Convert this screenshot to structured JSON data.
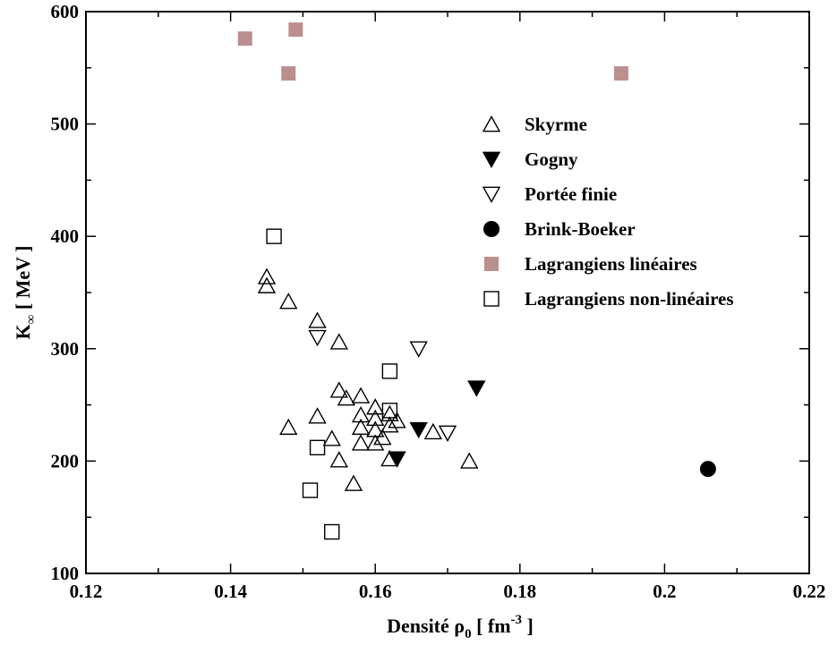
{
  "chart_data": {
    "type": "scatter",
    "title": "",
    "xlabel": {
      "main": "Densité ρ",
      "sub": "0",
      "open": " [ fm",
      "sup": "-3",
      "close": " ]"
    },
    "ylabel": {
      "main": "K",
      "sub": "∞",
      "rest": " [ MeV ]"
    },
    "xlim": [
      0.12,
      0.22
    ],
    "ylim": [
      100,
      600
    ],
    "xticks": [
      0.12,
      0.14,
      0.16,
      0.18,
      0.2,
      0.22
    ],
    "xtick_labels": [
      "0.12",
      "0.14",
      "0.16",
      "0.18",
      "0.2",
      "0.22"
    ],
    "yticks": [
      100,
      200,
      300,
      400,
      500,
      600
    ],
    "ytick_labels": [
      "100",
      "200",
      "300",
      "400",
      "500",
      "600"
    ],
    "grid": false,
    "legend_position": "right",
    "series": [
      {
        "name": "Skyrme",
        "marker": "triangle-up-open",
        "color": "#000000",
        "points": [
          [
            0.145,
            364
          ],
          [
            0.145,
            356
          ],
          [
            0.148,
            342
          ],
          [
            0.152,
            325
          ],
          [
            0.155,
            306
          ],
          [
            0.155,
            263
          ],
          [
            0.156,
            256
          ],
          [
            0.158,
            258
          ],
          [
            0.16,
            248
          ],
          [
            0.162,
            242
          ],
          [
            0.158,
            241
          ],
          [
            0.16,
            238
          ],
          [
            0.163,
            236
          ],
          [
            0.162,
            232
          ],
          [
            0.158,
            230
          ],
          [
            0.16,
            228
          ],
          [
            0.161,
            221
          ],
          [
            0.154,
            220
          ],
          [
            0.158,
            216
          ],
          [
            0.16,
            216
          ],
          [
            0.152,
            240
          ],
          [
            0.148,
            230
          ],
          [
            0.155,
            201
          ],
          [
            0.162,
            202
          ],
          [
            0.157,
            180
          ],
          [
            0.168,
            226
          ],
          [
            0.173,
            200
          ]
        ]
      },
      {
        "name": "Gogny",
        "marker": "triangle-down-filled",
        "color": "#000000",
        "points": [
          [
            0.174,
            265
          ],
          [
            0.166,
            228
          ],
          [
            0.163,
            202
          ]
        ]
      },
      {
        "name": "Portée finie",
        "marker": "triangle-down-open",
        "color": "#000000",
        "points": [
          [
            0.152,
            310
          ],
          [
            0.166,
            300
          ],
          [
            0.17,
            225
          ]
        ]
      },
      {
        "name": "Brink-Boeker",
        "marker": "circle-filled",
        "color": "#000000",
        "points": [
          [
            0.206,
            193
          ]
        ]
      },
      {
        "name": "Lagrangiens linéaires",
        "marker": "square-filled",
        "color": "#bc8f8f",
        "points": [
          [
            0.142,
            576
          ],
          [
            0.149,
            584
          ],
          [
            0.148,
            545
          ],
          [
            0.194,
            545
          ]
        ]
      },
      {
        "name": "Lagrangiens non-linéaires",
        "marker": "square-open",
        "color": "#000000",
        "points": [
          [
            0.146,
            400
          ],
          [
            0.162,
            280
          ],
          [
            0.162,
            245
          ],
          [
            0.152,
            212
          ],
          [
            0.151,
            174
          ],
          [
            0.154,
            137
          ]
        ]
      }
    ]
  }
}
